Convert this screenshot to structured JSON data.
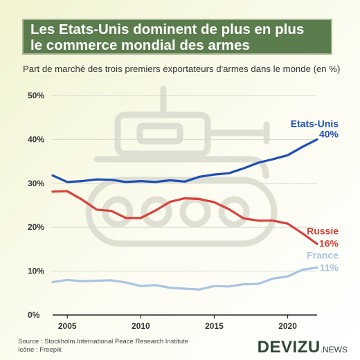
{
  "header": {
    "title_line1": "Les Etats-Unis dominent de plus en plus",
    "title_line2": "le commerce mondial des armes",
    "subtitle": "Part de marché des trois premiers exportateurs d'armes dans le monde (en %)"
  },
  "footer": {
    "source": "Source : Stockholm International Peace Research Institute",
    "icon_credit": "Icône : Freepik",
    "logo_main": "DEVIZU",
    "logo_suffix": ".NEWS"
  },
  "chart_data": {
    "type": "line",
    "x": [
      2004,
      2005,
      2006,
      2007,
      2008,
      2009,
      2010,
      2011,
      2012,
      2013,
      2014,
      2015,
      2016,
      2017,
      2018,
      2019,
      2020,
      2021,
      2022
    ],
    "xticks": [
      2005,
      2010,
      2015,
      2020
    ],
    "xlim": [
      2004,
      2022
    ],
    "ylim": [
      0,
      50
    ],
    "yticks": [
      0,
      10,
      20,
      30,
      40,
      50
    ],
    "ytick_labels": [
      "0%",
      "10%",
      "20%",
      "30%",
      "40%",
      "50%"
    ],
    "grid": true,
    "series": [
      {
        "name": "Etats-Unis",
        "end_label": "40%",
        "color": "#1f4fb5",
        "values": [
          31.8,
          30.3,
          30.5,
          30.9,
          30.8,
          30.3,
          30.5,
          30.3,
          30.7,
          30.4,
          31.5,
          32.0,
          32.3,
          33.4,
          34.7,
          35.5,
          36.4,
          38.3,
          40.0
        ]
      },
      {
        "name": "Russie",
        "end_label": "16%",
        "color": "#d9413b",
        "values": [
          28.1,
          28.2,
          26.3,
          24.0,
          23.7,
          22.1,
          22.1,
          23.8,
          25.8,
          26.6,
          26.4,
          25.7,
          24.1,
          22.0,
          21.5,
          21.5,
          20.8,
          18.6,
          16.2
        ]
      },
      {
        "name": "France",
        "end_label": "11%",
        "color": "#a8c4e3",
        "values": [
          7.5,
          8.0,
          7.7,
          7.8,
          7.9,
          7.4,
          6.6,
          6.8,
          6.2,
          6.0,
          5.8,
          6.6,
          6.5,
          7.0,
          7.1,
          8.3,
          8.8,
          10.3,
          10.8
        ]
      }
    ]
  }
}
